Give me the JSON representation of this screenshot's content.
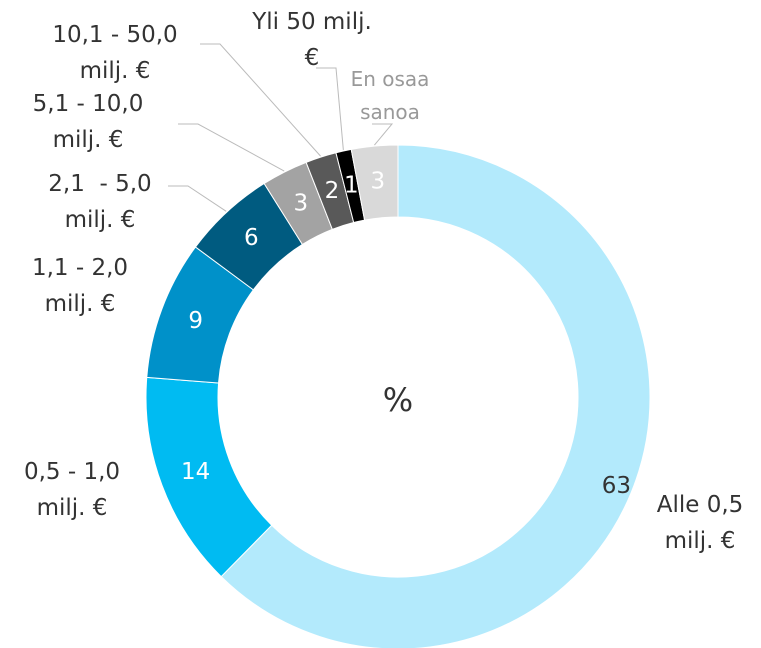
{
  "chart_data": {
    "type": "donut",
    "center_label": "%",
    "categories": [
      "Alle 0,5\nmilj. €",
      "0,5 - 1,0\nmilj. €",
      "1,1 - 2,0\nmilj. €",
      "2,1  - 5,0\nmilj. €",
      "5,1 - 10,0\nmilj. €",
      "10,1 - 50,0\nmilj. €",
      "Yli 50 milj.\n€",
      "En osaa\nsanoa"
    ],
    "values": [
      63,
      14,
      9,
      6,
      3,
      2,
      1,
      3
    ],
    "colors": [
      "#b3eafc",
      "#00bbf2",
      "#0091c9",
      "#005b80",
      "#a3a3a3",
      "#595959",
      "#000000",
      "#d9d9d9"
    ]
  }
}
